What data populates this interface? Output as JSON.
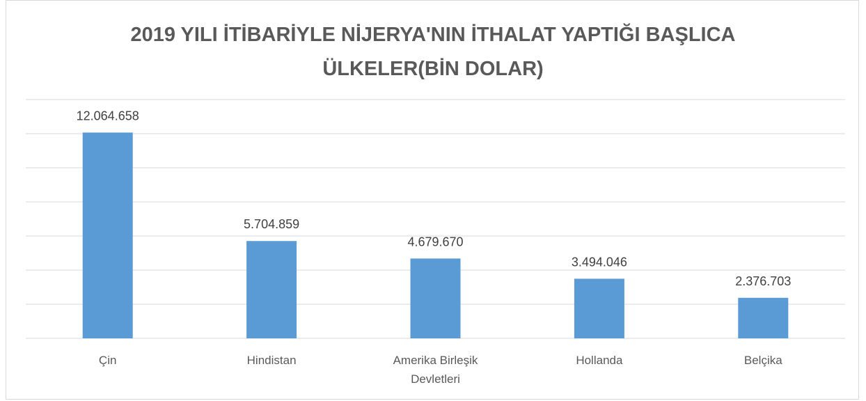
{
  "chart_data": {
    "type": "bar",
    "title": "2019 YILI İTİBARİYLE NİJERYA'NIN İTHALAT YAPTIĞI BAŞLICA ÜLKELER(BİN DOLAR)",
    "categories": [
      "Çin",
      "Hindistan",
      "Amerika Birleşik Devletleri",
      "Hollanda",
      "Belçika"
    ],
    "values": [
      12064658,
      5704859,
      4679670,
      3494046,
      2376703
    ],
    "value_labels": [
      "12.064.658",
      "5.704.859",
      "4.679.670",
      "3.494.046",
      "2.376.703"
    ],
    "color": "#5b9bd5",
    "ylim": [
      0,
      14000000
    ],
    "yticks": [
      0,
      2000000,
      4000000,
      6000000,
      8000000,
      10000000,
      12000000,
      14000000
    ],
    "grid": true
  }
}
